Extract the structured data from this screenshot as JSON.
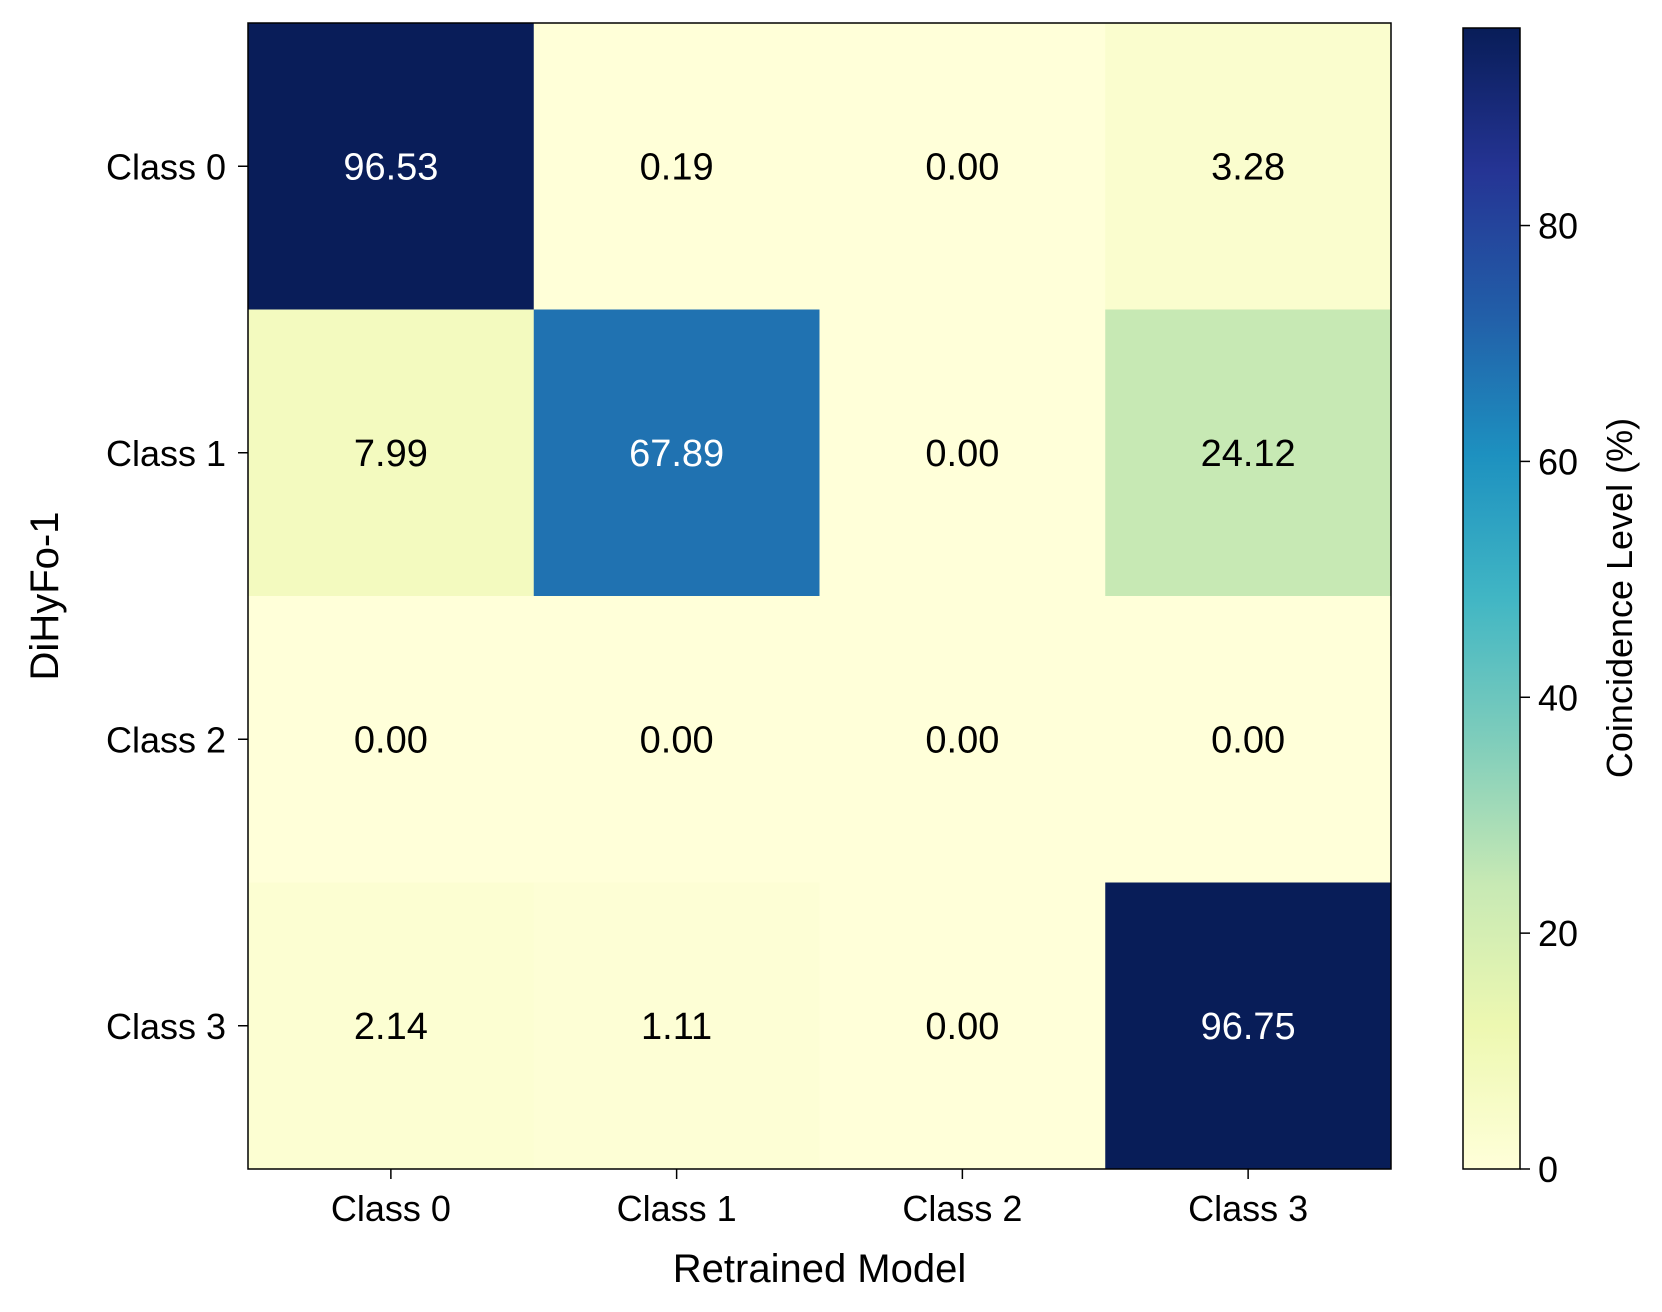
{
  "chart_data": {
    "type": "heatmap",
    "x_categories": [
      "Class 0",
      "Class 1",
      "Class 2",
      "Class 3"
    ],
    "y_categories": [
      "Class 0",
      "Class 1",
      "Class 2",
      "Class 3"
    ],
    "values": [
      [
        96.53,
        0.19,
        0.0,
        3.28
      ],
      [
        7.99,
        67.89,
        0.0,
        24.12
      ],
      [
        0.0,
        0.0,
        0.0,
        0.0
      ],
      [
        2.14,
        1.11,
        0.0,
        96.75
      ]
    ],
    "value_labels": [
      [
        "96.53",
        "0.19",
        "0.00",
        "3.28"
      ],
      [
        "7.99",
        "67.89",
        "0.00",
        "24.12"
      ],
      [
        "0.00",
        "0.00",
        "0.00",
        "0.00"
      ],
      [
        "2.14",
        "1.11",
        "0.00",
        "96.75"
      ]
    ],
    "xlabel": "Retrained Model",
    "ylabel": "DiHyFo-1",
    "colorbar": {
      "label": "Coincidence Level (%)",
      "range": [
        0,
        96.75
      ],
      "ticks": [
        0,
        20,
        40,
        60,
        80
      ],
      "tick_labels": [
        "0",
        "20",
        "40",
        "60",
        "80"
      ],
      "colormap": "YlGnBu",
      "colormap_stops": [
        "#ffffd9",
        "#edf8b1",
        "#c7e9b4",
        "#7fcdbb",
        "#41b6c4",
        "#1d91c0",
        "#225ea8",
        "#253494",
        "#081d58"
      ]
    },
    "text_color_dark": "#000000",
    "text_color_light": "#ffffff",
    "grid": false
  }
}
